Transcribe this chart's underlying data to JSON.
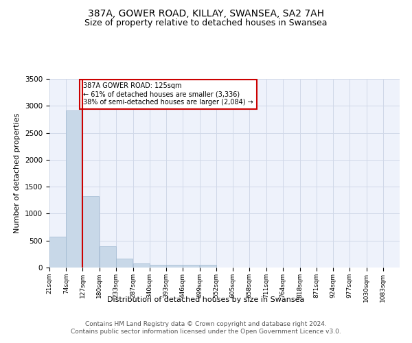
{
  "title": "387A, GOWER ROAD, KILLAY, SWANSEA, SA2 7AH",
  "subtitle": "Size of property relative to detached houses in Swansea",
  "xlabel": "Distribution of detached houses by size in Swansea",
  "ylabel": "Number of detached properties",
  "bins": [
    21,
    74,
    127,
    180,
    233,
    287,
    340,
    393,
    446,
    499,
    552,
    605,
    658,
    711,
    764,
    818,
    871,
    924,
    977,
    1030,
    1083
  ],
  "counts": [
    570,
    2920,
    1330,
    400,
    165,
    80,
    55,
    50,
    45,
    50,
    5,
    3,
    2,
    2,
    1,
    1,
    1,
    1,
    1,
    1
  ],
  "bar_color": "#c8d8e8",
  "bar_edge_color": "#a0b8d0",
  "grid_color": "#d0d8e8",
  "background_color": "#eef2fb",
  "property_line_x": 125,
  "property_line_color": "#cc0000",
  "annotation_text": "387A GOWER ROAD: 125sqm\n← 61% of detached houses are smaller (3,336)\n38% of semi-detached houses are larger (2,084) →",
  "annotation_box_facecolor": "white",
  "annotation_box_edge_color": "#cc0000",
  "ylim": [
    0,
    3500
  ],
  "yticks": [
    0,
    500,
    1000,
    1500,
    2000,
    2500,
    3000,
    3500
  ],
  "footer": "Contains HM Land Registry data © Crown copyright and database right 2024.\nContains public sector information licensed under the Open Government Licence v3.0.",
  "title_fontsize": 10,
  "subtitle_fontsize": 9,
  "footer_fontsize": 6.5
}
